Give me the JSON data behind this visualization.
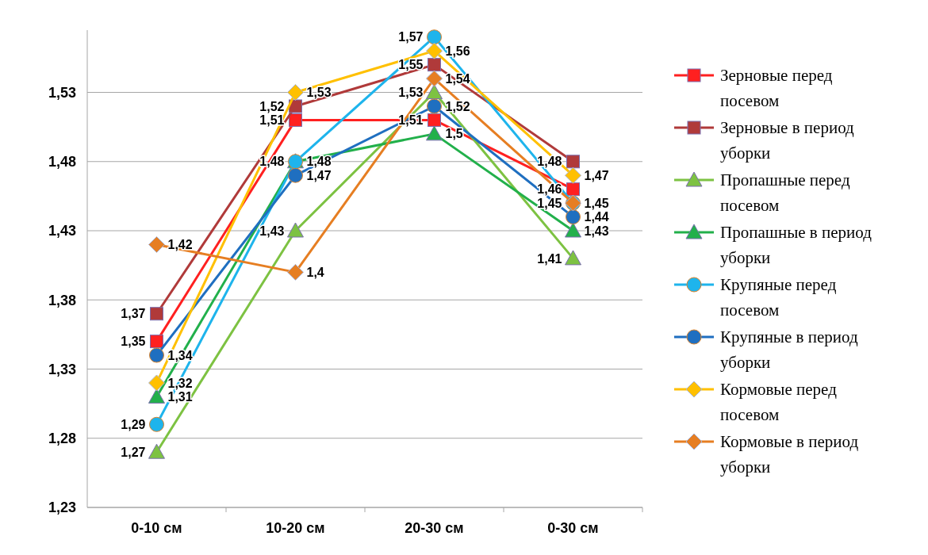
{
  "chart_data": {
    "type": "line",
    "categories": [
      "0-10 см",
      "10-20 см",
      "20-30 см",
      "0-30 см"
    ],
    "ylim": [
      1.23,
      1.575
    ],
    "yticks": [
      {
        "value": 1.23,
        "label": "1,23"
      },
      {
        "value": 1.28,
        "label": "1,28"
      },
      {
        "value": 1.33,
        "label": "1,33"
      },
      {
        "value": 1.38,
        "label": "1,38"
      },
      {
        "value": 1.43,
        "label": "1,43"
      },
      {
        "value": 1.48,
        "label": "1,48"
      },
      {
        "value": 1.53,
        "label": "1,53"
      }
    ],
    "grid": "y",
    "legend": "right",
    "series": [
      {
        "name": "Зерновые перед посевом",
        "color": "#ff2020",
        "marker": "square",
        "values": [
          1.35,
          1.51,
          1.51,
          1.46
        ],
        "value_labels": [
          "1,35",
          "1,51",
          "1,51",
          "1,46"
        ]
      },
      {
        "name": "Зерновые в период уборки",
        "color": "#b03a3a",
        "marker": "square",
        "values": [
          1.37,
          1.52,
          1.55,
          1.48
        ],
        "value_labels": [
          "1,37",
          "1,52",
          "1,55",
          "1,48"
        ]
      },
      {
        "name": "Пропашные перед посевом",
        "color": "#7dc242",
        "marker": "triangle",
        "values": [
          1.27,
          1.43,
          1.53,
          1.41
        ],
        "value_labels": [
          "1,27",
          "1,43",
          "1,53",
          "1,41"
        ]
      },
      {
        "name": "Пропашные в период уборки",
        "color": "#22b04b",
        "marker": "triangle",
        "values": [
          1.31,
          1.48,
          1.5,
          1.43
        ],
        "value_labels": [
          "1,31",
          "1,48",
          "1,5",
          "1,43"
        ]
      },
      {
        "name": "Крупяные перед посевом",
        "color": "#1eb4ec",
        "marker": "circle",
        "values": [
          1.29,
          1.48,
          1.57,
          1.45
        ],
        "value_labels": [
          "1,29",
          "1,48",
          "1,57",
          "1,45"
        ]
      },
      {
        "name": "Крупяные в период уборки",
        "color": "#1f6fc0",
        "marker": "circle",
        "values": [
          1.34,
          1.47,
          1.52,
          1.44
        ],
        "value_labels": [
          "1,34",
          "1,47",
          "1,52",
          "1,44"
        ]
      },
      {
        "name": "Кормовые перед посевом",
        "color": "#ffc000",
        "marker": "diamond",
        "values": [
          1.32,
          1.53,
          1.56,
          1.47
        ],
        "value_labels": [
          "1,32",
          "1,53",
          "1,56",
          "1,47"
        ]
      },
      {
        "name": "Кормовые в период уборки",
        "color": "#e67e22",
        "marker": "diamond",
        "values": [
          1.42,
          1.4,
          1.54,
          1.45
        ],
        "value_labels": [
          "1,42",
          "1,4",
          "1,54",
          "1,45"
        ]
      }
    ]
  }
}
